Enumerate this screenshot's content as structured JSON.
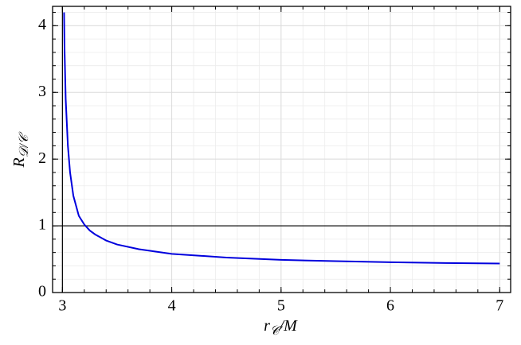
{
  "chart_data": {
    "type": "line",
    "xlabel": [
      "r",
      "𝒞",
      "/M"
    ],
    "ylabel": [
      "R",
      "𝒟/𝒞"
    ],
    "x": [
      3.015,
      3.02,
      3.03,
      3.05,
      3.07,
      3.1,
      3.15,
      3.2,
      3.25,
      3.3,
      3.4,
      3.5,
      3.7,
      4,
      4.5,
      5,
      5.5,
      6,
      6.5,
      7
    ],
    "series": [
      {
        "color": "#0000dd",
        "values": [
          4.2,
          3.6,
          2.9,
          2.2,
          1.8,
          1.45,
          1.15,
          1.02,
          0.93,
          0.87,
          0.78,
          0.72,
          0.65,
          0.58,
          0.525,
          0.49,
          0.47,
          0.455,
          0.443,
          0.435
        ]
      }
    ],
    "xlim": [
      2.91,
      7.1
    ],
    "xticks": [
      3,
      4,
      5,
      6,
      7
    ],
    "ylim": [
      0,
      4.29
    ],
    "yticks": [
      0,
      1,
      2,
      3,
      4
    ],
    "hlines": [
      1
    ],
    "vlines": [
      3
    ],
    "grid": true,
    "minor_grid": true
  }
}
